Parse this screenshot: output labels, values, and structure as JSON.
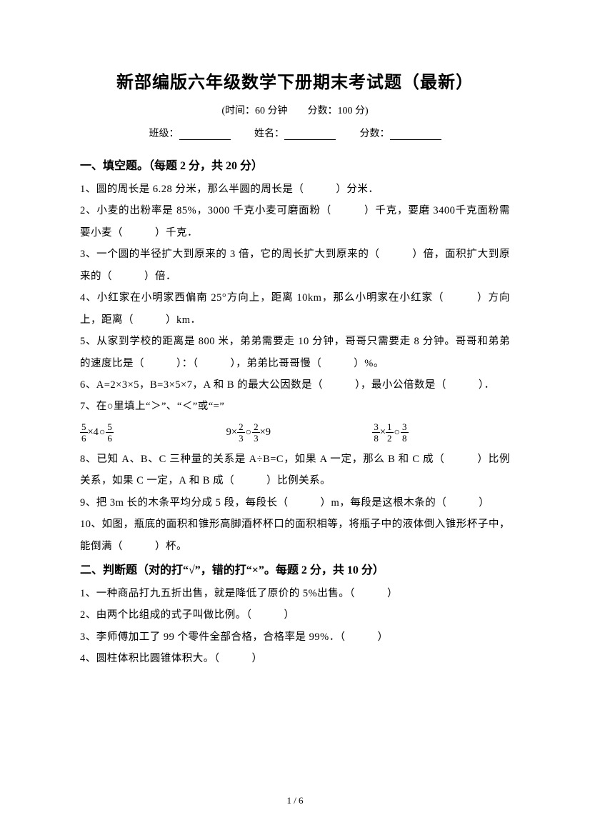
{
  "title": "新部编版六年级数学下册期末考试题（最新）",
  "subtitle": "(时间：60 分钟　　分数：100 分)",
  "info": {
    "class_label": "班级：",
    "name_label": "姓名：",
    "score_label": "分数："
  },
  "section1": {
    "header": "一、填空题。（每题 2 分，共 20 分）",
    "q1": "1、圆的周长是 6.28 分米，那么半圆的周长是（　　　）分米．",
    "q2": "2、小麦的出粉率是 85%，3000 千克小麦可磨面粉（　　　）千克，要磨 3400千克面粉需要小麦（　　　）千克．",
    "q3": "3、一个圆的半径扩大到原来的 3 倍，它的周长扩大到原来的（　　　）倍，面积扩大到原来的（　　　）倍．",
    "q4": "4、小红家在小明家西偏南 25°方向上，距离 10km，那么小明家在小红家（　　　）方向上，距离（　　　）km．",
    "q5": "5、从家到学校的距离是 800 米，弟弟需要走 10 分钟，哥哥只需要走 8 分钟。哥哥和弟弟的速度比是（　　　）：（　　　），弟弟比哥哥慢（　　　）%。",
    "q6": "6、A=2×3×5，B=3×5×7，A 和 B 的最大公因数是（　　　），最小公倍数是（　　　）．",
    "q7": "7、在○里填上“＞”、“＜”或“=”",
    "q7m1_a_num": "5",
    "q7m1_a_den": "6",
    "q7m1_mid": "×4",
    "q7m1_b_num": "5",
    "q7m1_b_den": "6",
    "q7m2_pre": "9×",
    "q7m2_a_num": "2",
    "q7m2_a_den": "3",
    "q7m2_b_num": "2",
    "q7m2_b_den": "3",
    "q7m2_post": "×9",
    "q7m3_a_num": "3",
    "q7m3_a_den": "8",
    "q7m3_mid": "×",
    "q7m3_b_num": "1",
    "q7m3_b_den": "2",
    "q7m3_c_num": "3",
    "q7m3_c_den": "8",
    "q8": "8、已知 A、B、C 三种量的关系是 A÷B=C，如果 A 一定，那么 B 和 C 成（　　　）比例关系，如果 C 一定，A 和 B 成（　　　）比例关系。",
    "q9": "9、把 3m 长的木条平均分成 5 段，每段长（　　　）m，每段是这根木条的（　　　）",
    "q10": "10、如图，瓶底的面积和锥形高脚酒杯杯口的面积相等，将瓶子中的液体倒入锥形杯子中，能倒满（　　　）杯。"
  },
  "section2": {
    "header": "二、判断题（对的打“√”，错的打“×”。每题 2 分，共 10 分）",
    "q1": "1、一种商品打九五折出售，就是降低了原价的 5%出售。（　　　）",
    "q2": "2、由两个比组成的式子叫做比例。（　　　）",
    "q3": "3、李师傅加工了 99 个零件全部合格，合格率是 99%．（　　　）",
    "q4": "4、圆柱体积比圆锥体积大。（　　　）"
  },
  "footer": "1 / 6"
}
